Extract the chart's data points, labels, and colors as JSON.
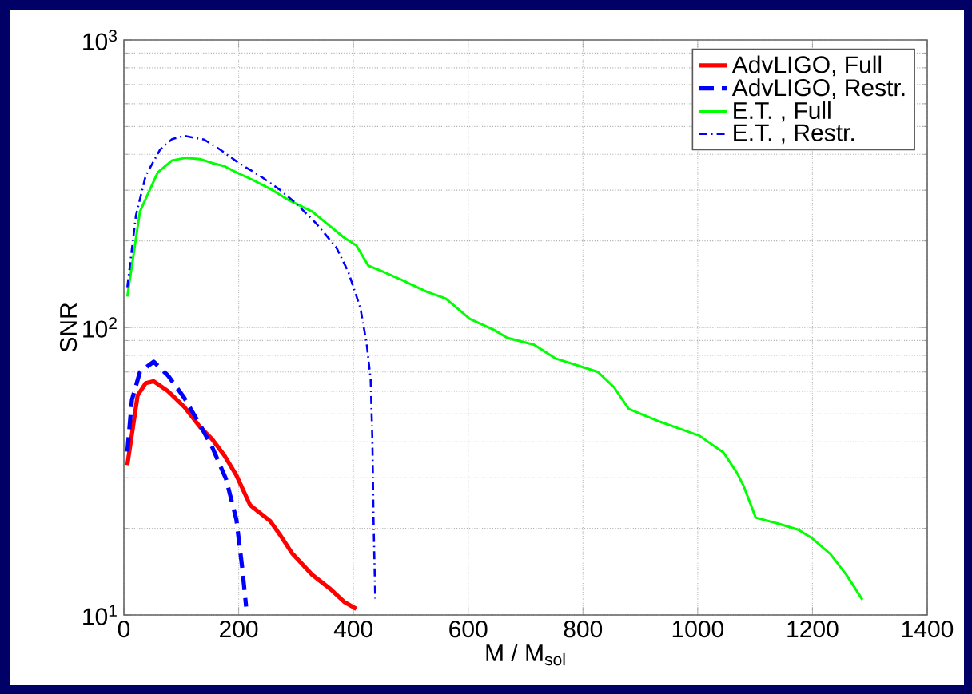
{
  "chart_data": {
    "type": "line",
    "xlabel": "M / M$_{sol}$",
    "ylabel": "SNR",
    "xlim": [
      0,
      1400
    ],
    "ylim": [
      10,
      1000
    ],
    "log": "y",
    "xticks": [
      0,
      200,
      400,
      600,
      800,
      1000,
      1200,
      1400
    ],
    "yticks": [
      {
        "value": 10,
        "label": "10$^{1}$"
      },
      {
        "value": 100,
        "label": "10$^{2}$"
      },
      {
        "value": 1000,
        "label": "10$^{3}$"
      }
    ],
    "grid": true,
    "legend": "top right",
    "marker": "none",
    "series": [
      {
        "name": "AdvLIGO, Full",
        "color": "#ff0000",
        "line_style": "solid",
        "x": [
          6,
          24,
          38,
          52,
          77,
          105,
          133,
          154,
          175,
          196,
          220,
          255,
          272,
          293,
          328,
          360,
          384,
          405
        ],
        "values": [
          33.2,
          58,
          64,
          65,
          60,
          53,
          45,
          40.8,
          35.9,
          30.6,
          24.1,
          21.2,
          19.0,
          16.4,
          13.8,
          12.3,
          11.1,
          10.5
        ]
      },
      {
        "name": "AdvLIGO, Restr.",
        "color": "#0000ff",
        "line_style": "dashed",
        "x": [
          6,
          14,
          28,
          52,
          77,
          105,
          133,
          154,
          178,
          196,
          206,
          213
        ],
        "values": [
          37,
          56,
          70,
          76,
          68,
          57,
          45.7,
          38.3,
          29.7,
          21.5,
          14.7,
          10.7
        ]
      },
      {
        "name": "E.T. , Full",
        "color": "#00ff00",
        "line_style": "solid",
        "x": [
          6,
          28,
          59,
          84,
          108,
          133,
          154,
          175,
          196,
          223,
          258,
          286,
          328,
          384,
          405,
          426,
          449,
          482,
          528,
          561,
          603,
          645,
          668,
          715,
          752,
          798,
          826,
          854,
          880,
          934,
          961,
          1003,
          1045,
          1068,
          1080,
          1101,
          1143,
          1175,
          1199,
          1231,
          1259,
          1287
        ],
        "values": [
          128,
          253,
          346,
          381,
          389,
          385,
          373,
          364,
          346,
          327,
          301,
          278,
          253,
          205,
          193,
          164,
          157,
          147,
          133,
          126,
          107,
          98,
          92,
          87,
          78,
          73,
          70,
          62,
          52,
          47,
          45,
          42,
          36.7,
          31.3,
          28.1,
          21.8,
          20.7,
          19.8,
          18.5,
          16.3,
          13.8,
          11.3
        ]
      },
      {
        "name": "E.T. , Restr.",
        "color": "#0000ff",
        "line_style": "dashdot",
        "x": [
          6,
          21,
          38,
          63,
          84,
          105,
          140,
          168,
          202,
          237,
          272,
          300,
          335,
          370,
          391,
          412,
          423,
          430,
          433,
          435,
          438
        ],
        "values": [
          138,
          245,
          337,
          415,
          452,
          464,
          450,
          415,
          371,
          337,
          301,
          270,
          230,
          190,
          156,
          117,
          88,
          66,
          40.8,
          21.5,
          11.4
        ]
      }
    ]
  }
}
